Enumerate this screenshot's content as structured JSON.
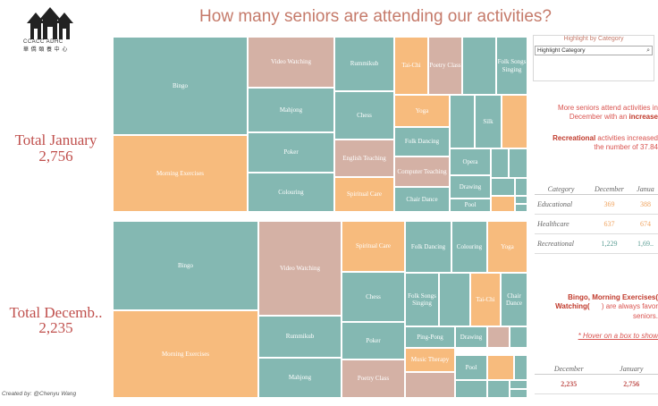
{
  "header": {
    "title": "How many seniors are attending our activities?",
    "logo_text": "CCACC ADHC",
    "logo_subtext": "華 僑 頤 養 中 心"
  },
  "totals": {
    "january_label": "Total January",
    "january_value": "2,756",
    "december_label": "Total Decemb..",
    "december_value": "2,235"
  },
  "credit": "Created by: @Chenyu Wang",
  "filter": {
    "title": "Highlight by Category",
    "placeholder": "Highlight Category",
    "search_icon": "search-icon"
  },
  "insights": {
    "line1_a": "More seniors attend activities in",
    "line1_b": "December with an",
    "line1_bold": "increase",
    "line2_bold": "Recreational",
    "line2_a": "activities increased",
    "line2_b": "the number of 37.84",
    "line3_bold": "Bingo, Morning Exercises(",
    "line3_b": "Watching(",
    "line3_c": ") are always favor",
    "line3_d": "seniors.",
    "hover": "* Hover on a box to show"
  },
  "category_table": {
    "headers": [
      "Category",
      "December",
      "Janua"
    ],
    "rows": [
      {
        "name": "Educational",
        "december": "369",
        "january": "388"
      },
      {
        "name": "Healthcare",
        "december": "637",
        "january": "674"
      },
      {
        "name": "Recreational",
        "december": "1,229",
        "january": "1,69.."
      }
    ]
  },
  "totals_table": {
    "headers": [
      "December",
      "January"
    ],
    "values": [
      "2,235",
      "2,756"
    ]
  },
  "colors": {
    "educational": "#f7bb7d",
    "healthcare": "#d4b1a5",
    "recreational": "#84b8b2"
  },
  "treemap_january": [
    {
      "label": "Bingo",
      "c": "teal"
    },
    {
      "label": "Morning Exercises",
      "c": "orange"
    },
    {
      "label": "Video Watching",
      "c": "pink"
    },
    {
      "label": "Mahjong",
      "c": "teal"
    },
    {
      "label": "Poker",
      "c": "teal"
    },
    {
      "label": "Colouring",
      "c": "teal"
    },
    {
      "label": "Rummikub",
      "c": "teal"
    },
    {
      "label": "Chess",
      "c": "teal"
    },
    {
      "label": "English Teaching",
      "c": "pink"
    },
    {
      "label": "Spiritual Care",
      "c": "orange"
    },
    {
      "label": "Tai-Chi",
      "c": "orange"
    },
    {
      "label": "Poetry Class",
      "c": "pink"
    },
    {
      "label": "",
      "c": "teal"
    },
    {
      "label": "Folk Songs Singing",
      "c": "teal"
    },
    {
      "label": "Yoga",
      "c": "orange"
    },
    {
      "label": "Folk Dancing",
      "c": "teal"
    },
    {
      "label": "Computer Teaching",
      "c": "pink"
    },
    {
      "label": "Chair Dance",
      "c": "teal"
    },
    {
      "label": "Silk",
      "c": "teal"
    },
    {
      "label": "",
      "c": "teal"
    },
    {
      "label": "",
      "c": "orange"
    },
    {
      "label": "Opera",
      "c": "teal"
    },
    {
      "label": "Drawing",
      "c": "teal"
    },
    {
      "label": "Pool",
      "c": "teal"
    },
    {
      "label": "",
      "c": "teal"
    },
    {
      "label": "",
      "c": "teal"
    },
    {
      "label": "",
      "c": "teal"
    },
    {
      "label": "",
      "c": "teal"
    },
    {
      "label": "",
      "c": "orange"
    },
    {
      "label": "",
      "c": "teal"
    },
    {
      "label": "",
      "c": "teal"
    }
  ],
  "treemap_december": [
    {
      "label": "Bingo",
      "c": "teal"
    },
    {
      "label": "Morning Exercises",
      "c": "orange"
    },
    {
      "label": "Video Watching",
      "c": "pink"
    },
    {
      "label": "Rummikub",
      "c": "teal"
    },
    {
      "label": "Mahjong",
      "c": "teal"
    },
    {
      "label": "Spiritual Care",
      "c": "orange"
    },
    {
      "label": "Chess",
      "c": "teal"
    },
    {
      "label": "Poker",
      "c": "teal"
    },
    {
      "label": "Poetry Class",
      "c": "pink"
    },
    {
      "label": "Folk Dancing",
      "c": "teal"
    },
    {
      "label": "Colouring",
      "c": "teal"
    },
    {
      "label": "Yoga",
      "c": "orange"
    },
    {
      "label": "Folk Songs Singing",
      "c": "teal"
    },
    {
      "label": "",
      "c": "teal"
    },
    {
      "label": "Tai-Chi",
      "c": "orange"
    },
    {
      "label": "Chair Dance",
      "c": "teal"
    },
    {
      "label": "Ping-Pong",
      "c": "teal"
    },
    {
      "label": "Drawing",
      "c": "teal"
    },
    {
      "label": "",
      "c": "pink"
    },
    {
      "label": "",
      "c": "teal"
    },
    {
      "label": "Music Therapy",
      "c": "orange"
    },
    {
      "label": "",
      "c": "pink"
    },
    {
      "label": "Pool",
      "c": "teal"
    },
    {
      "label": "",
      "c": "orange"
    },
    {
      "label": "",
      "c": "teal"
    },
    {
      "label": "",
      "c": "teal"
    },
    {
      "label": "",
      "c": "teal"
    },
    {
      "label": "",
      "c": "teal"
    },
    {
      "label": "",
      "c": "teal"
    }
  ]
}
